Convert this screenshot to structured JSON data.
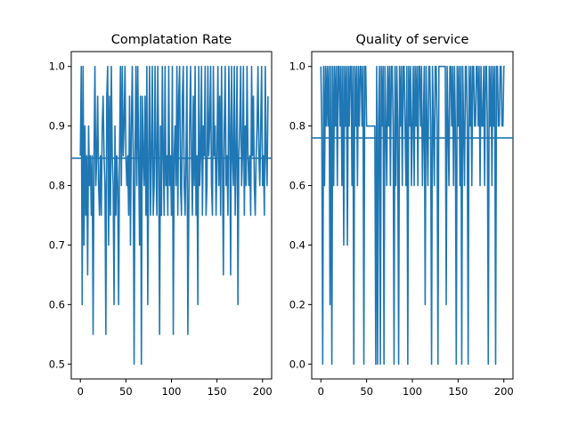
{
  "chart_data": [
    {
      "type": "line",
      "title": "Complatation Rate",
      "xlabel": "",
      "ylabel": "",
      "xlim": [
        -10,
        210
      ],
      "ylim": [
        0.475,
        1.025
      ],
      "xticks": [
        0,
        50,
        100,
        150,
        200
      ],
      "yticks": [
        0.5,
        0.6,
        0.7,
        0.8,
        0.9,
        1.0
      ],
      "ytick_labels": [
        "0.5",
        "0.6",
        "0.7",
        "0.8",
        "0.9",
        "1.0"
      ],
      "line_color": "#1f77b4",
      "horizontal_line": 0.846,
      "x_start": 0,
      "values": [
        0.85,
        1.0,
        0.6,
        1.0,
        0.7,
        0.9,
        0.75,
        0.85,
        0.65,
        0.9,
        0.8,
        0.85,
        0.75,
        0.85,
        0.55,
        0.85,
        1.0,
        0.8,
        0.85,
        0.95,
        0.8,
        0.75,
        0.85,
        0.75,
        0.9,
        0.95,
        0.85,
        0.8,
        0.55,
        0.95,
        1.0,
        0.7,
        0.95,
        0.75,
        1.0,
        0.85,
        0.8,
        0.6,
        0.9,
        0.75,
        0.85,
        0.8,
        0.6,
        0.85,
        1.0,
        0.8,
        1.0,
        0.85,
        0.9,
        1.0,
        0.85,
        0.8,
        0.85,
        0.75,
        0.95,
        0.7,
        0.9,
        1.0,
        0.85,
        0.5,
        0.85,
        1.0,
        0.8,
        1.0,
        0.85,
        0.7,
        0.95,
        0.5,
        0.95,
        0.85,
        0.8,
        0.95,
        0.75,
        1.0,
        0.6,
        0.85,
        1.0,
        0.75,
        0.85,
        1.0,
        0.75,
        0.8,
        1.0,
        0.85,
        0.75,
        1.0,
        0.85,
        0.55,
        0.9,
        0.75,
        1.0,
        0.85,
        0.75,
        1.0,
        0.8,
        0.85,
        0.75,
        1.0,
        0.8,
        0.85,
        0.75,
        1.0,
        0.55,
        0.85,
        0.9,
        0.8,
        1.0,
        0.75,
        0.95,
        1.0,
        0.8,
        0.75,
        0.95,
        1.0,
        0.8,
        0.75,
        0.85,
        1.0,
        0.55,
        0.75,
        0.9,
        1.0,
        0.85,
        0.75,
        0.95,
        0.8,
        1.0,
        0.75,
        0.85,
        0.6,
        1.0,
        0.8,
        0.85,
        1.0,
        0.75,
        0.9,
        0.85,
        1.0,
        0.75,
        0.8,
        1.0,
        0.85,
        0.9,
        1.0,
        0.8,
        0.75,
        1.0,
        0.85,
        0.9,
        0.75,
        0.85,
        1.0,
        0.8,
        0.95,
        0.75,
        1.0,
        0.85,
        0.65,
        0.9,
        1.0,
        0.8,
        0.85,
        0.75,
        1.0,
        0.9,
        0.65,
        1.0,
        0.85,
        0.8,
        1.0,
        0.75,
        0.85,
        1.0,
        0.6,
        0.85,
        0.9,
        1.0,
        0.8,
        0.85,
        1.0,
        0.75,
        0.9,
        0.8,
        1.0,
        0.85,
        0.8,
        0.85,
        0.75,
        1.0,
        0.85,
        0.95,
        0.8,
        0.75,
        0.85,
        0.9,
        1.0,
        0.85,
        0.8,
        0.9,
        1.0,
        0.8,
        0.85,
        0.75,
        1.0,
        0.85,
        0.8,
        0.95
      ]
    },
    {
      "type": "line",
      "title": "Quality of service",
      "xlabel": "",
      "ylabel": "",
      "xlim": [
        -10,
        210
      ],
      "ylim": [
        -0.05,
        1.05
      ],
      "xticks": [
        0,
        50,
        100,
        150,
        200
      ],
      "yticks": [
        0.0,
        0.2,
        0.4,
        0.6,
        0.8,
        1.0
      ],
      "ytick_labels": [
        "0.0",
        "0.2",
        "0.4",
        "0.6",
        "0.8",
        "1.0"
      ],
      "line_color": "#1f77b4",
      "horizontal_line": 0.76,
      "x_start": 0,
      "values": [
        1.0,
        0.8,
        0.0,
        1.0,
        0.6,
        1.0,
        0.8,
        1.0,
        0.8,
        1.0,
        0.2,
        1.0,
        0.0,
        1.0,
        0.6,
        1.0,
        0.8,
        1.0,
        0.6,
        1.0,
        1.0,
        0.8,
        1.0,
        0.6,
        1.0,
        0.4,
        1.0,
        0.8,
        1.0,
        0.4,
        1.0,
        0.8,
        1.0,
        1.0,
        0.6,
        1.0,
        0.0,
        1.0,
        0.8,
        1.0,
        0.6,
        1.0,
        0.8,
        1.0,
        1.0,
        0.8,
        1.0,
        0.0,
        1.0,
        1.0,
        0.8,
        0.8,
        0.8,
        0.8,
        0.8,
        0.8,
        0.8,
        0.8,
        0.8,
        0.8,
        0.0,
        1.0,
        0.0,
        0.8,
        1.0,
        0.0,
        1.0,
        0.8,
        1.0,
        0.0,
        1.0,
        0.8,
        0.6,
        1.0,
        0.8,
        1.0,
        0.6,
        1.0,
        1.0,
        0.8,
        0.0,
        1.0,
        0.6,
        1.0,
        0.8,
        0.0,
        1.0,
        0.8,
        1.0,
        0.6,
        1.0,
        1.0,
        0.8,
        0.6,
        1.0,
        0.0,
        1.0,
        0.8,
        1.0,
        0.6,
        0.8,
        1.0,
        0.6,
        1.0,
        0.8,
        1.0,
        0.6,
        1.0,
        1.0,
        0.8,
        1.0,
        0.6,
        0.8,
        1.0,
        0.2,
        1.0,
        0.8,
        0.6,
        1.0,
        1.0,
        0.8,
        0.0,
        1.0,
        0.8,
        0.6,
        1.0,
        1.0,
        0.8,
        0.0,
        1.0,
        1.0,
        1.0,
        1.0,
        1.0,
        1.0,
        1.0,
        1.0,
        0.2,
        1.0,
        0.8,
        0.6,
        1.0,
        1.0,
        0.8,
        1.0,
        0.6,
        1.0,
        0.8,
        0.0,
        1.0,
        0.8,
        1.0,
        0.6,
        1.0,
        0.0,
        1.0,
        0.8,
        0.6,
        1.0,
        1.0,
        0.8,
        0.0,
        1.0,
        0.8,
        1.0,
        0.6,
        1.0,
        1.0,
        0.8,
        0.8,
        1.0,
        1.0,
        0.8,
        1.0,
        0.6,
        1.0,
        0.8,
        0.8,
        1.0,
        0.6,
        1.0,
        1.0,
        0.8,
        0.0,
        1.0,
        0.8,
        1.0,
        0.6,
        1.0,
        0.8,
        1.0,
        0.0,
        1.0,
        1.0,
        0.8,
        0.8,
        1.0,
        1.0,
        0.8,
        0.8,
        1.0,
        1.0
      ]
    }
  ]
}
